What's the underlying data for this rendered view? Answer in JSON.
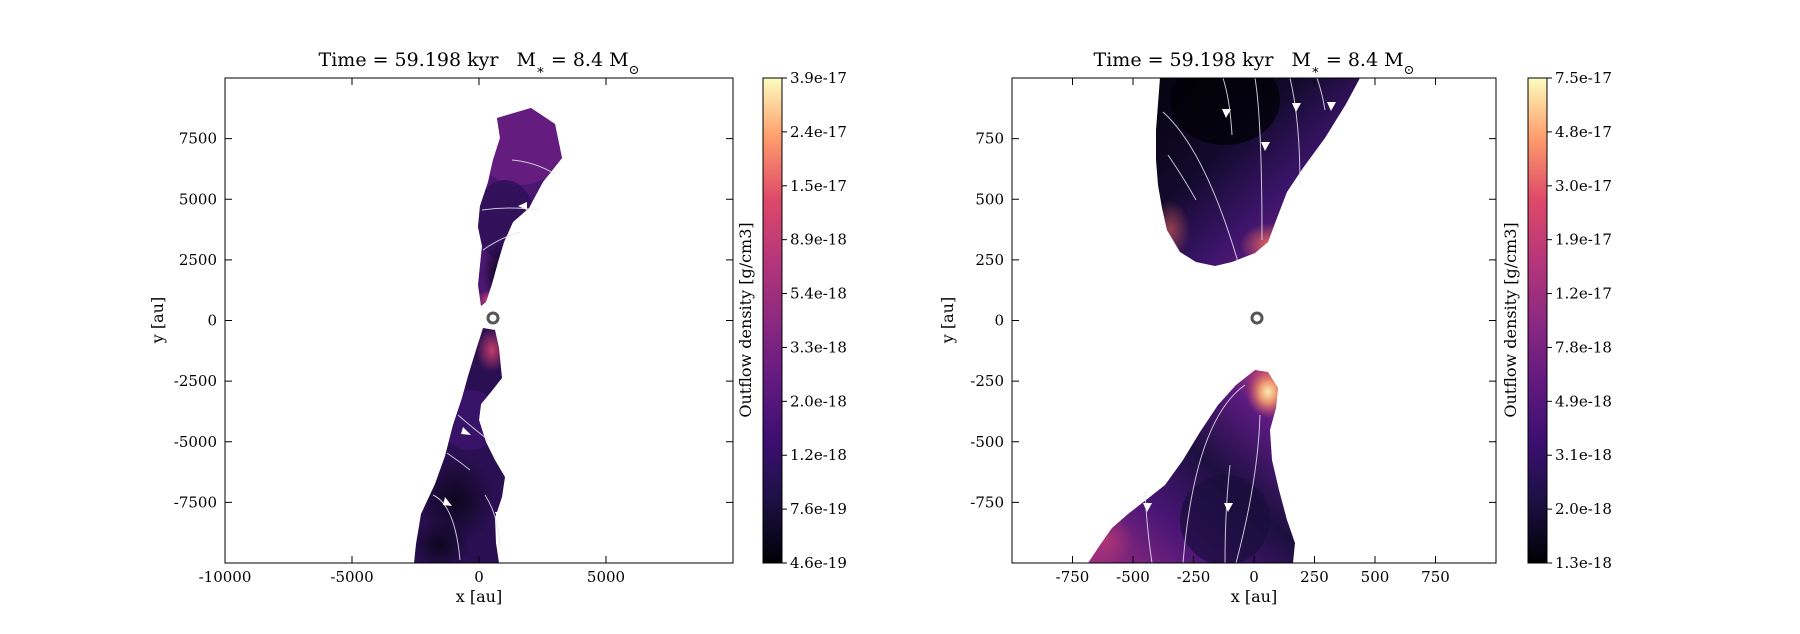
{
  "chart_data": [
    {
      "type": "heatmap",
      "title": "Time = 59.198 kyr    M∗ = 8.4 M⊙",
      "xlabel": "x [au]",
      "ylabel": "y [au]",
      "xlim": [
        -10000,
        10000
      ],
      "ylim": [
        -10000,
        10000
      ],
      "xticks": [
        -10000,
        -5000,
        0,
        5000
      ],
      "xtick_labels": [
        "-10000",
        "-5000",
        "0",
        "5000"
      ],
      "yticks": [
        7500,
        5000,
        2500,
        0,
        -2500,
        -5000,
        -7500
      ],
      "ytick_labels": [
        "7500",
        "5000",
        "2500",
        "0",
        "-2500",
        "-5000",
        "-7500"
      ],
      "colorbar": {
        "label": "Outflow density [g/cm3]",
        "scale": "log",
        "colormap": "magma",
        "range": [
          4.6e-19,
          3.9e-17
        ],
        "tick_labels": [
          "3.9e-17",
          "2.4e-17",
          "1.5e-17",
          "8.9e-18",
          "5.4e-18",
          "3.3e-18",
          "2.0e-18",
          "1.2e-18",
          "7.6e-19",
          "4.6e-19"
        ]
      },
      "star_position": [
        0,
        0
      ],
      "grid": false
    },
    {
      "type": "heatmap",
      "title": "Time = 59.198 kyr    M∗ = 8.4 M⊙",
      "xlabel": "x [au]",
      "ylabel": "y [au]",
      "xlim": [
        -1000,
        1000
      ],
      "ylim": [
        -1000,
        1000
      ],
      "xticks": [
        -750,
        -500,
        -250,
        0,
        250,
        500,
        750
      ],
      "xtick_labels": [
        "-750",
        "-500",
        "-250",
        "0",
        "250",
        "500",
        "750"
      ],
      "yticks": [
        750,
        500,
        250,
        0,
        -250,
        -500,
        -750
      ],
      "ytick_labels": [
        "750",
        "500",
        "250",
        "0",
        "-250",
        "-500",
        "-750"
      ],
      "colorbar": {
        "label": "Outflow density [g/cm3]",
        "scale": "log",
        "colormap": "magma",
        "range": [
          1.3e-18,
          7.5e-17
        ],
        "tick_labels": [
          "7.5e-17",
          "4.8e-17",
          "3.0e-17",
          "1.9e-17",
          "1.2e-17",
          "7.8e-18",
          "4.9e-18",
          "3.1e-18",
          "2.0e-18",
          "1.3e-18"
        ]
      },
      "star_position": [
        0,
        0
      ],
      "grid": false
    }
  ]
}
